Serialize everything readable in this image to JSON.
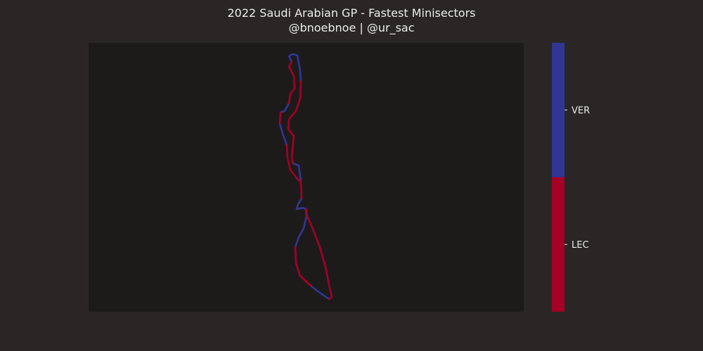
{
  "chart_data": {
    "type": "line",
    "title": "2022 Saudi Arabian GP - Fastest Minisectors",
    "subtitle": "@bnoebnoe | @ur_sac",
    "grid": false,
    "axes_visible": false,
    "colorbar": {
      "orientation": "vertical",
      "categories": [
        {
          "label": "LEC",
          "color": "#a50026"
        },
        {
          "label": "VER",
          "color": "#313695"
        }
      ]
    },
    "series": [
      {
        "name": "VER",
        "color": "#313695",
        "segments": [
          [
            [
              415,
              88
            ],
            [
              411,
              80
            ],
            [
              416,
              77
            ],
            [
              423,
              79
            ],
            [
              425,
              90
            ],
            [
              427,
              102
            ],
            [
              428,
              116
            ]
          ],
          [
            [
              411,
              147
            ],
            [
              405,
              158
            ],
            [
              399,
              160
            ]
          ],
          [
            [
              398,
              176
            ],
            [
              402,
              190
            ],
            [
              408,
              207
            ]
          ],
          [
            [
              416,
              232
            ],
            [
              425,
              236
            ],
            [
              427,
              250
            ],
            [
              428,
              258
            ]
          ],
          [
            [
              429,
              283
            ],
            [
              424,
              291
            ],
            [
              422,
              298
            ],
            [
              431,
              296
            ],
            [
              435,
              298
            ],
            [
              436,
              308
            ],
            [
              432,
              325
            ],
            [
              425,
              338
            ],
            [
              420,
              352
            ]
          ],
          [
            [
              442,
              407
            ],
            [
              455,
              417
            ],
            [
              468,
              426
            ]
          ]
        ]
      },
      {
        "name": "LEC",
        "color": "#a50026",
        "segments": [
          [
            [
              415,
              88
            ],
            [
              411,
              95
            ],
            [
              418,
              108
            ],
            [
              419,
              126
            ],
            [
              413,
              134
            ],
            [
              411,
              147
            ]
          ],
          [
            [
              428,
              116
            ],
            [
              427,
              140
            ],
            [
              421,
              158
            ],
            [
              411,
              170
            ],
            [
              410,
              184
            ],
            [
              418,
              194
            ],
            [
              416,
              213
            ],
            [
              415,
              225
            ],
            [
              416,
              232
            ]
          ],
          [
            [
              399,
              160
            ],
            [
              398,
              176
            ]
          ],
          [
            [
              408,
              207
            ],
            [
              409,
              225
            ],
            [
              413,
              242
            ],
            [
              424,
              256
            ],
            [
              428,
              258
            ],
            [
              429,
              283
            ]
          ],
          [
            [
              420,
              352
            ],
            [
              421,
              375
            ],
            [
              427,
              393
            ],
            [
              442,
              407
            ]
          ],
          [
            [
              468,
              426
            ],
            [
              472,
              423
            ],
            [
              468,
              406
            ],
            [
              463,
              380
            ],
            [
              455,
              352
            ],
            [
              445,
              326
            ],
            [
              437,
              308
            ],
            [
              436,
              298
            ]
          ]
        ]
      }
    ]
  }
}
